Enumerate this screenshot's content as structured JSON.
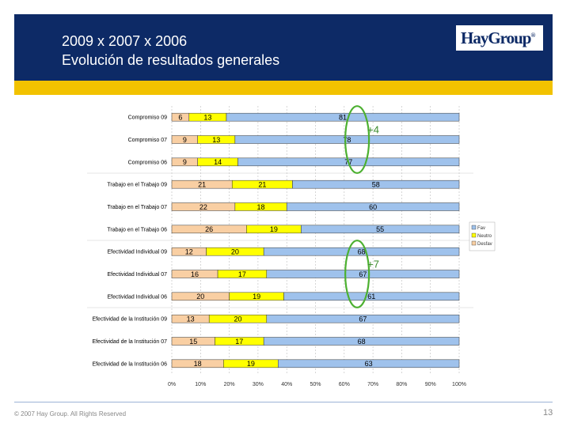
{
  "header": {
    "title_line1": "2009 x 2007 x 2006",
    "title_line2": "Evolución de resultados generales",
    "logo": "HayGroup"
  },
  "footer": {
    "copyright": "© 2007 Hay Group. All Rights Reserved",
    "page_number": "13"
  },
  "colors": {
    "header_bg": "#0d2a66",
    "gold_band": "#f2c200",
    "series_desfavorable": "#f9cfa3",
    "series_neutro": "#ffff00",
    "series_favorable": "#9fc2ec",
    "annotation": "#4cb030"
  },
  "chart_data": {
    "type": "bar",
    "orientation": "horizontal",
    "stacked": true,
    "categories": [
      "Compromiso 09",
      "Compromiso 07",
      "Compromiso 06",
      "Trabajo en el Trabajo 09",
      "Trabajo en el Trabajo 07",
      "Trabajo en el Trabajo 06",
      "Efectividad Individual 09",
      "Efectividad Individual 07",
      "Efectividad Individual 06",
      "Efectividad de la Institución 09",
      "Efectividad de la Institución 07",
      "Efectividad de la Institución 06"
    ],
    "series": [
      {
        "name": "Desfav",
        "values": [
          6,
          9,
          9,
          21,
          22,
          26,
          12,
          16,
          20,
          13,
          15,
          18
        ]
      },
      {
        "name": "Neutro",
        "values": [
          13,
          13,
          14,
          21,
          18,
          19,
          20,
          17,
          19,
          20,
          17,
          19
        ]
      },
      {
        "name": "Fav",
        "values": [
          81,
          78,
          77,
          58,
          60,
          55,
          68,
          67,
          61,
          67,
          68,
          63
        ]
      }
    ],
    "xlim": [
      0,
      100
    ],
    "xticks": [
      "0%",
      "10%",
      "20%",
      "30%",
      "40%",
      "50%",
      "60%",
      "70%",
      "80%",
      "90%",
      "100%"
    ],
    "legend_position": "right",
    "annotations": [
      {
        "text": "+4",
        "rows": [
          0,
          2
        ]
      },
      {
        "text": "+7",
        "rows": [
          6,
          8
        ]
      }
    ]
  }
}
